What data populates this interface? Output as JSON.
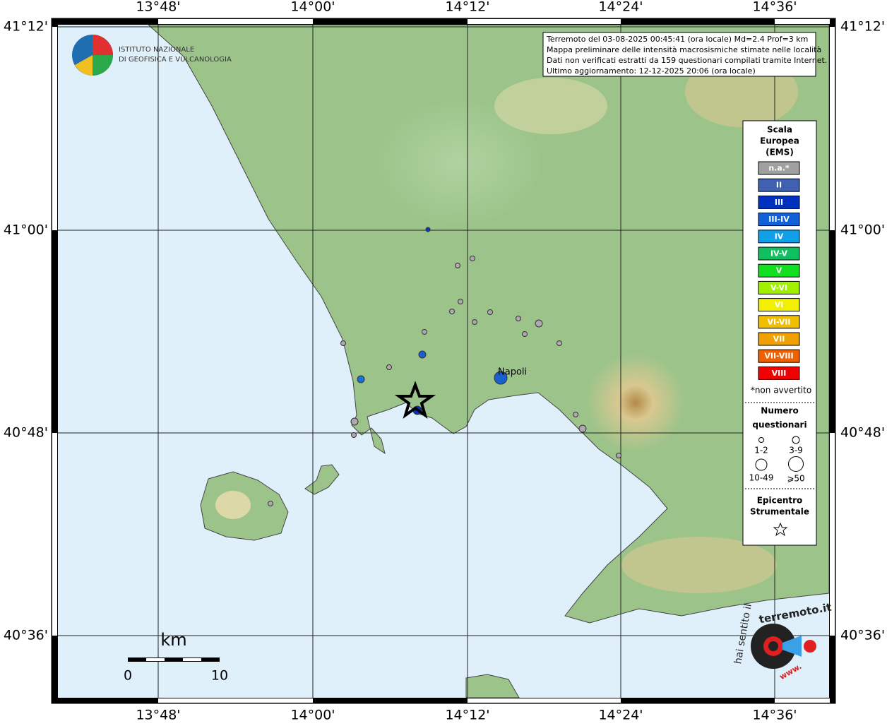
{
  "map": {
    "lon_labels": [
      "13°48'",
      "14°00'",
      "14°12'",
      "14°24'",
      "14°36'"
    ],
    "lat_labels": [
      "41°12'",
      "41°00'",
      "40°48'",
      "40°36'"
    ],
    "institute": [
      "ISTITUTO NAZIONALE",
      "DI GEOFISICA E VULCANOLOGIA"
    ],
    "info": [
      "Terremoto del 03-08-2025 00:45:41 (ora locale) Md=2.4 Prof=3 km",
      "Mappa preliminare delle intensità macrosismiche stimate nelle località",
      "Dati non verificati estratti da 159 questionari compilati tramite Internet.",
      "Ultimo aggiornamento: 12-12-2025 20:06 (ora locale)"
    ],
    "city": "Napoli",
    "scale_bar": {
      "unit": "km",
      "start": "0",
      "end": "10"
    },
    "legend": {
      "title": [
        "Scala",
        "Europea",
        "(EMS)"
      ],
      "levels": [
        "n.a.*",
        "II",
        "III",
        "III-IV",
        "IV",
        "IV-V",
        "V",
        "V-VI",
        "VI",
        "VI-VII",
        "VII",
        "VII-VIII",
        "VIII"
      ],
      "note": "*non avvertito",
      "count_title": [
        "Numero",
        "questionari"
      ],
      "count_sizes": [
        "1-2",
        "3-9",
        "10-49",
        "⩾50"
      ],
      "epicenter_title": [
        "Epicentro",
        "Strumentale"
      ]
    },
    "site": [
      "hai sentito il",
      "terremoto.it",
      "www."
    ]
  }
}
